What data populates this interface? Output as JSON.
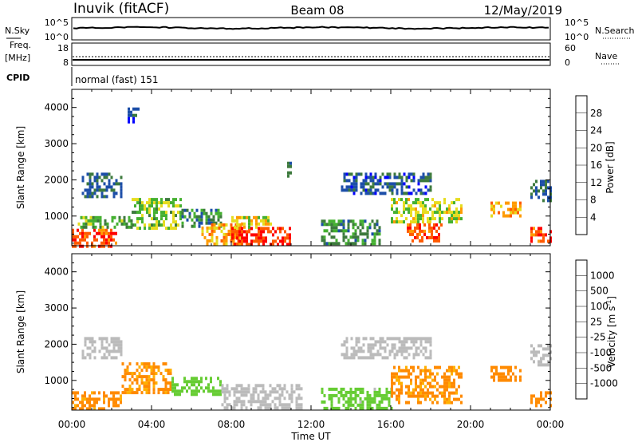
{
  "header": {
    "station": "Inuvik (fitACF)",
    "beam": "Beam 08",
    "date": "12/May/2019"
  },
  "sky_panel": {
    "left_label": "N.Sky",
    "right_label": "N.Search",
    "left_ticks": [
      "10^5",
      "10^0"
    ],
    "right_ticks": [
      "10^5",
      "10^0"
    ]
  },
  "freq_panel": {
    "left_label_1": "Freq.",
    "left_label_2": "[MHz]",
    "right_label": "Nave",
    "left_ticks": [
      "18",
      "8"
    ],
    "right_ticks": [
      "60",
      "0"
    ]
  },
  "cpid": {
    "label": "CPID",
    "value": "normal (fast) 151"
  },
  "time_axis": {
    "label": "Time UT",
    "ticks": [
      "00:00",
      "04:00",
      "08:00",
      "12:00",
      "16:00",
      "20:00",
      "00:00"
    ]
  },
  "chart_data": [
    {
      "type": "heatmap",
      "title": "Power",
      "ylabel": "Slant Range [km]",
      "xlabel": "",
      "xlim": [
        0,
        24
      ],
      "ylim": [
        180,
        4500
      ],
      "yticks": [
        1000,
        2000,
        3000,
        4000
      ],
      "colorbar": {
        "label": "Power [dB]",
        "ticks": [
          "4",
          "8",
          "12",
          "16",
          "20",
          "24",
          "28"
        ],
        "colors": [
          "#0000ff",
          "#1c4ea8",
          "#3d7a3d",
          "#44b030",
          "#e6dc1e",
          "#ff9a00",
          "#ff5a00",
          "#ff0000"
        ]
      },
      "regions": [
        {
          "t0": 0.0,
          "t1": 2.2,
          "r0": 200,
          "r1": 650,
          "value": 27
        },
        {
          "t0": 0.3,
          "t1": 3.0,
          "r0": 650,
          "r1": 1000,
          "value": 14
        },
        {
          "t0": 0.5,
          "t1": 2.5,
          "r0": 1500,
          "r1": 2200,
          "value": 8
        },
        {
          "t0": 2.8,
          "t1": 3.3,
          "r0": 3600,
          "r1": 4000,
          "value": 6
        },
        {
          "t0": 3.0,
          "t1": 5.5,
          "r0": 700,
          "r1": 1500,
          "value": 15
        },
        {
          "t0": 5.5,
          "t1": 7.5,
          "r0": 700,
          "r1": 1200,
          "value": 10
        },
        {
          "t0": 6.5,
          "t1": 8.5,
          "r0": 250,
          "r1": 800,
          "value": 22
        },
        {
          "t0": 8.0,
          "t1": 11.0,
          "r0": 200,
          "r1": 700,
          "value": 28
        },
        {
          "t0": 8.0,
          "t1": 10.0,
          "r0": 700,
          "r1": 1000,
          "value": 18
        },
        {
          "t0": 10.8,
          "t1": 11.0,
          "r0": 2100,
          "r1": 2500,
          "value": 8
        },
        {
          "t0": 13.5,
          "t1": 18.0,
          "r0": 1600,
          "r1": 2200,
          "value": 7
        },
        {
          "t0": 12.5,
          "t1": 15.5,
          "r0": 200,
          "r1": 900,
          "value": 11
        },
        {
          "t0": 16.0,
          "t1": 19.5,
          "r0": 800,
          "r1": 1500,
          "value": 17
        },
        {
          "t0": 16.8,
          "t1": 18.5,
          "r0": 300,
          "r1": 800,
          "value": 27
        },
        {
          "t0": 21.0,
          "t1": 22.5,
          "r0": 1000,
          "r1": 1400,
          "value": 22
        },
        {
          "t0": 23.0,
          "t1": 24.0,
          "r0": 1400,
          "r1": 2000,
          "value": 8
        },
        {
          "t0": 23.0,
          "t1": 24.0,
          "r0": 300,
          "r1": 700,
          "value": 26
        }
      ]
    },
    {
      "type": "heatmap",
      "title": "Velocity",
      "ylabel": "Slant Range [km]",
      "xlabel": "Time UT",
      "xlim": [
        0,
        24
      ],
      "ylim": [
        180,
        4500
      ],
      "yticks": [
        1000,
        2000,
        3000,
        4000
      ],
      "colorbar": {
        "label": "Velocity [m s^-1]",
        "ticks": [
          "1000",
          "500",
          "100",
          "25",
          "-25",
          "-100",
          "-500",
          "-1000"
        ],
        "colors": [
          "#1430c8",
          "#2a7a3a",
          "#3c9a3c",
          "#66cc33",
          "#bbbbbb",
          "#ffb000",
          "#ff8a00",
          "#ff4400",
          "#ff0000"
        ]
      },
      "regions": [
        {
          "t0": 0.0,
          "t1": 2.5,
          "r0": 200,
          "r1": 700,
          "value": -150
        },
        {
          "t0": 0.5,
          "t1": 2.5,
          "r0": 1600,
          "r1": 2200,
          "value": 0
        },
        {
          "t0": 2.5,
          "t1": 5.0,
          "r0": 700,
          "r1": 1500,
          "value": -120
        },
        {
          "t0": 5.0,
          "t1": 7.5,
          "r0": 600,
          "r1": 1100,
          "value": 60
        },
        {
          "t0": 7.5,
          "t1": 11.5,
          "r0": 200,
          "r1": 900,
          "value": 0
        },
        {
          "t0": 13.5,
          "t1": 18.0,
          "r0": 1600,
          "r1": 2200,
          "value": 0
        },
        {
          "t0": 12.5,
          "t1": 16.0,
          "r0": 200,
          "r1": 800,
          "value": 40
        },
        {
          "t0": 16.0,
          "t1": 19.5,
          "r0": 400,
          "r1": 1400,
          "value": -130
        },
        {
          "t0": 21.0,
          "t1": 22.5,
          "r0": 1000,
          "r1": 1400,
          "value": -160
        },
        {
          "t0": 23.0,
          "t1": 24.0,
          "r0": 1400,
          "r1": 2000,
          "value": 0
        },
        {
          "t0": 23.0,
          "t1": 24.0,
          "r0": 300,
          "r1": 700,
          "value": -200
        }
      ]
    }
  ]
}
